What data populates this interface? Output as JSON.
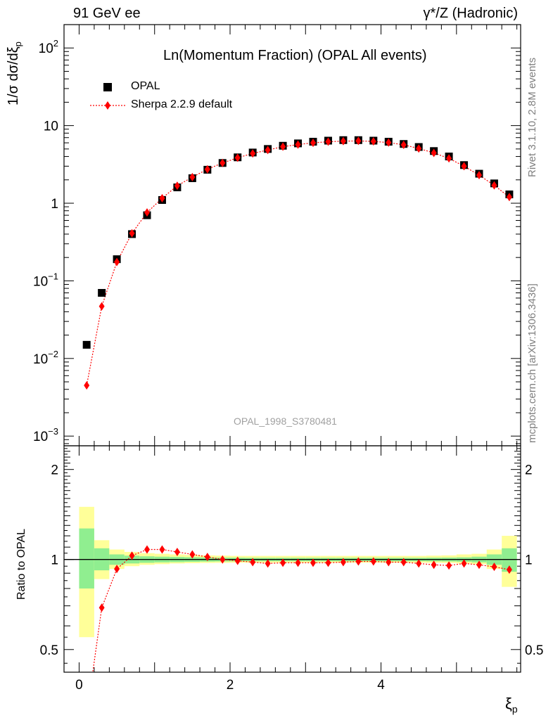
{
  "header": {
    "left": "91 GeV ee",
    "right": "γ*/Z (Hadronic)"
  },
  "side": {
    "rivet": "Rivet 3.1.10,  2.8M events",
    "mcplots": "mcplots.cern.ch [arXiv:1306.3436]"
  },
  "watermark": "OPAL_1998_S3780481",
  "colors": {
    "data": "#000000",
    "mc": "#ff0000",
    "band_inner": "#90ee90",
    "band_outer": "#ffff99"
  },
  "chart_data": [
    {
      "type": "scatter",
      "title": "Ln(Momentum Fraction) (OPAL All events)",
      "ylabel": "1/σ dσ/dξ_p",
      "yscale": "log",
      "ylim": [
        0.00075,
        200
      ],
      "xlim": [
        -0.2,
        5.85
      ],
      "legend_position": "top-left",
      "series": [
        {
          "name": "OPAL",
          "marker": "square",
          "x": [
            0.1,
            0.3,
            0.5,
            0.7,
            0.9,
            1.1,
            1.3,
            1.5,
            1.7,
            1.9,
            2.1,
            2.3,
            2.5,
            2.7,
            2.9,
            3.1,
            3.3,
            3.5,
            3.7,
            3.9,
            4.1,
            4.3,
            4.5,
            4.7,
            4.9,
            5.1,
            5.3,
            5.5,
            5.7
          ],
          "y": [
            0.015,
            0.07,
            0.19,
            0.4,
            0.7,
            1.1,
            1.6,
            2.1,
            2.7,
            3.3,
            3.9,
            4.5,
            5.0,
            5.5,
            5.9,
            6.2,
            6.4,
            6.5,
            6.5,
            6.4,
            6.2,
            5.8,
            5.3,
            4.7,
            4.0,
            3.1,
            2.4,
            1.8,
            1.3
          ]
        },
        {
          "name": "Sherpa 2.2.9 default",
          "marker": "diamond",
          "x": [
            0.1,
            0.3,
            0.5,
            0.7,
            0.9,
            1.1,
            1.3,
            1.5,
            1.7,
            1.9,
            2.1,
            2.3,
            2.5,
            2.7,
            2.9,
            3.1,
            3.3,
            3.5,
            3.7,
            3.9,
            4.1,
            4.3,
            4.5,
            4.7,
            4.9,
            5.1,
            5.3,
            5.5,
            5.7
          ],
          "y": [
            0.0045,
            0.047,
            0.175,
            0.41,
            0.76,
            1.16,
            1.68,
            2.17,
            2.74,
            3.3,
            3.85,
            4.38,
            4.85,
            5.35,
            5.7,
            6.0,
            6.2,
            6.3,
            6.35,
            6.25,
            6.05,
            5.65,
            5.07,
            4.45,
            3.78,
            3.0,
            2.3,
            1.7,
            1.2
          ]
        }
      ]
    },
    {
      "type": "line",
      "ylabel": "Ratio to OPAL",
      "xlabel": "ξ_p",
      "yscale": "log",
      "ylim": [
        0.42,
        2.4
      ],
      "xlim": [
        -0.2,
        5.85
      ],
      "yticks": [
        "0.5",
        "1",
        "2"
      ],
      "xticks": [
        "0",
        "2",
        "4"
      ],
      "reference_line": 1,
      "series": [
        {
          "name": "Sherpa 2.2.9 default",
          "marker": "diamond",
          "x": [
            0.1,
            0.3,
            0.5,
            0.7,
            0.9,
            1.1,
            1.3,
            1.5,
            1.7,
            1.9,
            2.1,
            2.3,
            2.5,
            2.7,
            2.9,
            3.1,
            3.3,
            3.5,
            3.7,
            3.9,
            4.1,
            4.3,
            4.5,
            4.7,
            4.9,
            5.1,
            5.3,
            5.5,
            5.7
          ],
          "y": [
            0.3,
            0.69,
            0.93,
            1.03,
            1.08,
            1.08,
            1.06,
            1.04,
            1.02,
            1.0,
            0.99,
            0.98,
            0.97,
            0.975,
            0.975,
            0.975,
            0.975,
            0.98,
            0.985,
            0.985,
            0.98,
            0.98,
            0.97,
            0.96,
            0.955,
            0.97,
            0.96,
            0.945,
            0.925
          ]
        }
      ],
      "bands": {
        "x_edges": [
          0.0,
          0.2,
          0.4,
          0.6,
          0.8,
          1.0,
          1.2,
          1.4,
          1.6,
          1.8,
          2.0,
          2.2,
          2.4,
          2.6,
          2.8,
          3.0,
          3.2,
          3.4,
          3.6,
          3.8,
          4.0,
          4.2,
          4.4,
          4.6,
          4.8,
          5.0,
          5.2,
          5.4,
          5.6,
          5.8
        ],
        "inner": [
          [
            0.8,
            1.27
          ],
          [
            0.92,
            1.09
          ],
          [
            0.96,
            1.04
          ],
          [
            0.97,
            1.03
          ],
          [
            0.975,
            1.025
          ],
          [
            0.978,
            1.022
          ],
          [
            0.98,
            1.02
          ],
          [
            0.982,
            1.018
          ],
          [
            0.984,
            1.016
          ],
          [
            0.985,
            1.015
          ],
          [
            0.986,
            1.014
          ],
          [
            0.987,
            1.013
          ],
          [
            0.987,
            1.013
          ],
          [
            0.987,
            1.013
          ],
          [
            0.987,
            1.013
          ],
          [
            0.987,
            1.013
          ],
          [
            0.987,
            1.013
          ],
          [
            0.987,
            1.013
          ],
          [
            0.987,
            1.013
          ],
          [
            0.987,
            1.013
          ],
          [
            0.987,
            1.013
          ],
          [
            0.987,
            1.013
          ],
          [
            0.987,
            1.013
          ],
          [
            0.986,
            1.014
          ],
          [
            0.985,
            1.015
          ],
          [
            0.983,
            1.017
          ],
          [
            0.978,
            1.022
          ],
          [
            0.96,
            1.04
          ],
          [
            0.91,
            1.09
          ]
        ],
        "outer": [
          [
            0.55,
            1.5
          ],
          [
            0.86,
            1.16
          ],
          [
            0.93,
            1.08
          ],
          [
            0.95,
            1.06
          ],
          [
            0.96,
            1.05
          ],
          [
            0.965,
            1.045
          ],
          [
            0.97,
            1.04
          ],
          [
            0.972,
            1.036
          ],
          [
            0.974,
            1.032
          ],
          [
            0.975,
            1.03
          ],
          [
            0.976,
            1.028
          ],
          [
            0.976,
            1.028
          ],
          [
            0.976,
            1.028
          ],
          [
            0.976,
            1.028
          ],
          [
            0.976,
            1.028
          ],
          [
            0.976,
            1.028
          ],
          [
            0.976,
            1.028
          ],
          [
            0.976,
            1.028
          ],
          [
            0.976,
            1.028
          ],
          [
            0.976,
            1.028
          ],
          [
            0.976,
            1.028
          ],
          [
            0.976,
            1.028
          ],
          [
            0.976,
            1.028
          ],
          [
            0.975,
            1.03
          ],
          [
            0.974,
            1.032
          ],
          [
            0.97,
            1.04
          ],
          [
            0.965,
            1.045
          ],
          [
            0.93,
            1.08
          ],
          [
            0.81,
            1.2
          ]
        ]
      }
    }
  ]
}
